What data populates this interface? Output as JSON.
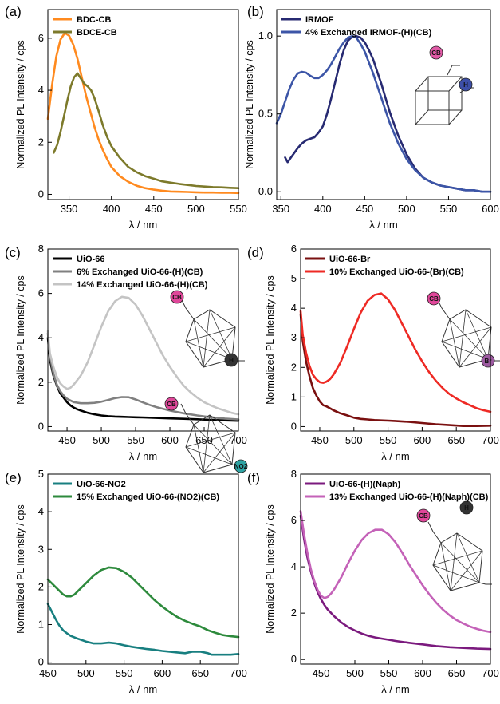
{
  "figure": {
    "background": "#ffffff"
  },
  "chart_data": [
    {
      "panel_label": "(a)",
      "type": "line",
      "xlabel": "λ / nm",
      "ylabel": "Normalized PL Intensity / cps",
      "xlim": [
        325,
        550
      ],
      "ylim": [
        -0.2,
        7.1
      ],
      "xticks": [
        350,
        400,
        450,
        500,
        550
      ],
      "yticks": [
        0,
        2,
        4,
        6
      ],
      "legend_position": "top-left",
      "series": [
        {
          "name": "BDC-CB",
          "color": "#ff8a1f",
          "width": 2.6,
          "x": [
            325,
            330,
            335,
            340,
            345,
            350,
            355,
            360,
            365,
            370,
            375,
            380,
            385,
            390,
            395,
            400,
            410,
            420,
            430,
            440,
            450,
            460,
            470,
            480,
            490,
            500,
            510,
            520,
            530,
            540,
            550
          ],
          "y": [
            2.9,
            4.2,
            5.3,
            5.95,
            6.2,
            6.1,
            5.75,
            5.2,
            4.5,
            3.8,
            3.2,
            2.6,
            2.1,
            1.7,
            1.35,
            1.05,
            0.7,
            0.48,
            0.33,
            0.24,
            0.18,
            0.14,
            0.11,
            0.1,
            0.09,
            0.08,
            0.07,
            0.07,
            0.06,
            0.06,
            0.05
          ]
        },
        {
          "name": "BDCE-CB",
          "color": "#7d7a2b",
          "width": 2.6,
          "x": [
            332,
            336,
            340,
            344,
            348,
            352,
            356,
            360,
            364,
            368,
            372,
            376,
            380,
            385,
            390,
            395,
            400,
            410,
            420,
            430,
            440,
            450,
            460,
            470,
            480,
            490,
            500,
            510,
            520,
            530,
            540,
            550
          ],
          "y": [
            1.6,
            1.9,
            2.4,
            3.0,
            3.6,
            4.15,
            4.5,
            4.65,
            4.45,
            4.25,
            4.15,
            4.0,
            3.7,
            3.2,
            2.65,
            2.2,
            1.85,
            1.4,
            1.05,
            0.85,
            0.7,
            0.6,
            0.5,
            0.45,
            0.4,
            0.36,
            0.32,
            0.3,
            0.28,
            0.27,
            0.25,
            0.24
          ]
        }
      ]
    },
    {
      "panel_label": "(b)",
      "type": "line",
      "xlabel": "λ / nm",
      "ylabel": "Normalized PL Intensity / cps",
      "xlim": [
        345,
        600
      ],
      "ylim": [
        -0.05,
        1.17
      ],
      "xticks": [
        350,
        400,
        450,
        500,
        550,
        600
      ],
      "yticks": [
        0.0,
        0.5,
        1.0
      ],
      "tick_format": "1dp",
      "legend_position": "top-left",
      "inset_labels": [
        "CB",
        "H"
      ],
      "series": [
        {
          "name": "IRMOF",
          "color": "#272a72",
          "width": 2.6,
          "x": [
            355,
            358,
            362,
            366,
            370,
            375,
            380,
            385,
            390,
            395,
            400,
            405,
            410,
            415,
            420,
            425,
            430,
            435,
            440,
            445,
            450,
            455,
            460,
            465,
            470,
            475,
            480,
            490,
            500,
            510,
            520,
            530,
            540,
            550,
            560,
            570,
            580,
            590,
            600
          ],
          "y": [
            0.22,
            0.19,
            0.22,
            0.25,
            0.28,
            0.31,
            0.33,
            0.34,
            0.35,
            0.38,
            0.42,
            0.5,
            0.6,
            0.71,
            0.82,
            0.91,
            0.97,
            0.995,
            1.0,
            0.99,
            0.96,
            0.91,
            0.85,
            0.77,
            0.69,
            0.6,
            0.51,
            0.36,
            0.24,
            0.15,
            0.09,
            0.06,
            0.04,
            0.03,
            0.02,
            0.01,
            0.01,
            0.0,
            0.0
          ]
        },
        {
          "name": "4% Exchanged IRMOF-(H)(CB)",
          "color": "#3c55a7",
          "width": 2.6,
          "x": [
            345,
            350,
            355,
            360,
            365,
            370,
            375,
            380,
            385,
            390,
            395,
            400,
            405,
            410,
            415,
            420,
            425,
            430,
            435,
            440,
            445,
            450,
            455,
            460,
            465,
            470,
            475,
            480,
            490,
            500,
            510,
            520,
            530,
            540,
            550,
            560,
            570,
            580,
            590,
            600
          ],
          "y": [
            0.44,
            0.5,
            0.58,
            0.66,
            0.72,
            0.76,
            0.77,
            0.765,
            0.745,
            0.73,
            0.73,
            0.75,
            0.78,
            0.82,
            0.87,
            0.92,
            0.96,
            0.99,
            1.0,
            0.99,
            0.95,
            0.9,
            0.83,
            0.76,
            0.68,
            0.6,
            0.52,
            0.44,
            0.31,
            0.21,
            0.14,
            0.09,
            0.06,
            0.04,
            0.03,
            0.02,
            0.01,
            0.01,
            0.0,
            0.0
          ]
        }
      ]
    },
    {
      "panel_label": "(c)",
      "type": "line",
      "xlabel": "λ / nm",
      "ylabel": "Normalized PL Intensity / cps",
      "xlim": [
        422,
        700
      ],
      "ylim": [
        -0.2,
        8.0
      ],
      "xticks": [
        450,
        500,
        550,
        600,
        650,
        700
      ],
      "yticks": [
        0,
        2,
        4,
        6,
        8
      ],
      "legend_position": "top-left",
      "inset_labels": [
        "CB",
        "H"
      ],
      "series": [
        {
          "name": "UiO-66",
          "color": "#000000",
          "width": 2.6,
          "x": [
            422,
            425,
            430,
            435,
            440,
            445,
            450,
            455,
            460,
            465,
            470,
            480,
            490,
            500,
            510,
            520,
            530,
            540,
            550,
            560,
            580,
            600,
            620,
            640,
            660,
            680,
            700
          ],
          "y": [
            4.0,
            3.0,
            2.3,
            1.85,
            1.5,
            1.3,
            1.1,
            0.95,
            0.85,
            0.78,
            0.72,
            0.62,
            0.55,
            0.5,
            0.47,
            0.45,
            0.44,
            0.43,
            0.42,
            0.41,
            0.39,
            0.37,
            0.35,
            0.33,
            0.3,
            0.28,
            0.26
          ]
        },
        {
          "name": "6% Exchanged UiO-66-(H)(CB)",
          "color": "#808080",
          "width": 2.6,
          "x": [
            422,
            425,
            430,
            435,
            440,
            445,
            450,
            460,
            470,
            480,
            490,
            500,
            510,
            520,
            530,
            540,
            550,
            560,
            570,
            580,
            600,
            620,
            640,
            660,
            680,
            700
          ],
          "y": [
            4.2,
            3.2,
            2.4,
            1.9,
            1.6,
            1.4,
            1.25,
            1.1,
            1.05,
            1.05,
            1.07,
            1.12,
            1.2,
            1.28,
            1.33,
            1.32,
            1.22,
            1.1,
            0.98,
            0.88,
            0.72,
            0.6,
            0.5,
            0.42,
            0.36,
            0.32
          ]
        },
        {
          "name": "14% Exchanged UiO-66-(H)(CB)",
          "color": "#c4c4c4",
          "width": 2.6,
          "x": [
            422,
            425,
            430,
            435,
            440,
            445,
            450,
            455,
            460,
            470,
            480,
            490,
            500,
            510,
            520,
            530,
            540,
            550,
            560,
            570,
            580,
            590,
            600,
            610,
            620,
            630,
            640,
            650,
            660,
            670,
            680,
            690,
            700
          ],
          "y": [
            4.3,
            3.3,
            2.7,
            2.25,
            1.95,
            1.8,
            1.7,
            1.75,
            1.9,
            2.3,
            2.9,
            3.7,
            4.5,
            5.2,
            5.65,
            5.85,
            5.8,
            5.5,
            5.0,
            4.4,
            3.8,
            3.2,
            2.7,
            2.25,
            1.85,
            1.55,
            1.3,
            1.1,
            0.95,
            0.82,
            0.72,
            0.62,
            0.55
          ]
        }
      ]
    },
    {
      "panel_label": "(d)",
      "type": "line",
      "xlabel": "λ / nm",
      "ylabel": "Normalized PL Intensity / cps",
      "xlim": [
        422,
        700
      ],
      "ylim": [
        -0.15,
        6.0
      ],
      "xticks": [
        450,
        500,
        550,
        600,
        650,
        700
      ],
      "yticks": [
        0,
        1,
        2,
        3,
        4,
        5,
        6
      ],
      "legend_position": "top-left",
      "inset_labels": [
        "CB",
        "Br"
      ],
      "series": [
        {
          "name": "UiO-66-Br",
          "color": "#7a1010",
          "width": 2.6,
          "x": [
            422,
            425,
            430,
            435,
            440,
            445,
            450,
            455,
            460,
            465,
            470,
            480,
            490,
            500,
            510,
            520,
            530,
            540,
            550,
            560,
            580,
            600,
            620,
            640,
            660,
            680,
            700
          ],
          "y": [
            3.8,
            2.9,
            2.2,
            1.7,
            1.3,
            1.05,
            0.85,
            0.72,
            0.68,
            0.62,
            0.55,
            0.45,
            0.38,
            0.3,
            0.26,
            0.24,
            0.22,
            0.21,
            0.2,
            0.19,
            0.16,
            0.12,
            0.08,
            0.05,
            0.02,
            0.02,
            0.03
          ]
        },
        {
          "name": "10% Exchanged UiO-66-(Br)(CB)",
          "color": "#ee2a24",
          "width": 2.6,
          "x": [
            422,
            425,
            430,
            435,
            440,
            445,
            450,
            455,
            460,
            465,
            470,
            480,
            490,
            500,
            510,
            520,
            530,
            540,
            550,
            560,
            570,
            580,
            590,
            600,
            610,
            620,
            630,
            640,
            650,
            660,
            670,
            680,
            690,
            700
          ],
          "y": [
            3.9,
            3.1,
            2.5,
            2.05,
            1.75,
            1.6,
            1.5,
            1.48,
            1.52,
            1.6,
            1.75,
            2.15,
            2.7,
            3.3,
            3.85,
            4.25,
            4.45,
            4.5,
            4.3,
            3.95,
            3.5,
            3.05,
            2.6,
            2.2,
            1.85,
            1.55,
            1.3,
            1.1,
            0.95,
            0.82,
            0.72,
            0.62,
            0.55,
            0.5
          ]
        }
      ]
    },
    {
      "panel_label": "(e)",
      "type": "line",
      "xlabel": "λ / nm",
      "ylabel": "Normalized PL Intensity / cps",
      "xlim": [
        450,
        700
      ],
      "ylim": [
        -0.05,
        5.0
      ],
      "xticks": [
        450,
        500,
        550,
        600,
        650,
        700
      ],
      "yticks": [
        0,
        1,
        2,
        3,
        4,
        5
      ],
      "legend_position": "top-left",
      "inset_labels": [
        "CB",
        "NO2"
      ],
      "series": [
        {
          "name": "UiO-66-NO2",
          "color": "#187f80",
          "width": 2.6,
          "x": [
            450,
            455,
            460,
            465,
            470,
            475,
            480,
            490,
            500,
            510,
            520,
            530,
            540,
            550,
            560,
            570,
            580,
            590,
            600,
            610,
            620,
            630,
            640,
            650,
            660,
            665,
            670,
            680,
            690,
            700
          ],
          "y": [
            1.55,
            1.35,
            1.15,
            0.98,
            0.85,
            0.77,
            0.7,
            0.62,
            0.55,
            0.5,
            0.5,
            0.52,
            0.5,
            0.45,
            0.41,
            0.38,
            0.35,
            0.33,
            0.3,
            0.28,
            0.26,
            0.24,
            0.28,
            0.28,
            0.24,
            0.2,
            0.2,
            0.2,
            0.2,
            0.22
          ]
        },
        {
          "name": "15% Exchanged UiO-66-(NO2)(CB)",
          "color": "#2d8a3c",
          "width": 2.6,
          "x": [
            450,
            455,
            460,
            465,
            470,
            475,
            480,
            485,
            490,
            500,
            510,
            520,
            530,
            540,
            550,
            560,
            570,
            580,
            590,
            600,
            610,
            620,
            630,
            640,
            650,
            660,
            670,
            680,
            690,
            700
          ],
          "y": [
            2.2,
            2.1,
            2.0,
            1.9,
            1.8,
            1.75,
            1.75,
            1.8,
            1.9,
            2.1,
            2.3,
            2.45,
            2.52,
            2.5,
            2.4,
            2.25,
            2.05,
            1.85,
            1.65,
            1.48,
            1.33,
            1.2,
            1.1,
            1.02,
            0.95,
            0.85,
            0.78,
            0.72,
            0.69,
            0.67
          ]
        }
      ]
    },
    {
      "panel_label": "(f)",
      "type": "line",
      "xlabel": "λ / nm",
      "ylabel": "Normalized PL Intensity / cps",
      "xlim": [
        420,
        700
      ],
      "ylim": [
        -0.2,
        8.0
      ],
      "xticks": [
        450,
        500,
        550,
        600,
        650,
        700
      ],
      "yticks": [
        0,
        2,
        4,
        6,
        8
      ],
      "legend_position": "top-left",
      "inset_labels": [
        "CB",
        "H"
      ],
      "series": [
        {
          "name": "UiO-66-(H)(Naph)",
          "color": "#7b1a7e",
          "width": 2.6,
          "x": [
            420,
            425,
            430,
            435,
            440,
            445,
            450,
            455,
            460,
            465,
            470,
            480,
            490,
            500,
            510,
            520,
            530,
            540,
            550,
            560,
            580,
            600,
            620,
            640,
            660,
            680,
            700
          ],
          "y": [
            6.2,
            5.2,
            4.4,
            3.8,
            3.3,
            2.9,
            2.6,
            2.35,
            2.15,
            2.0,
            1.85,
            1.6,
            1.4,
            1.25,
            1.12,
            1.02,
            0.95,
            0.9,
            0.85,
            0.8,
            0.72,
            0.65,
            0.58,
            0.53,
            0.5,
            0.47,
            0.45
          ]
        },
        {
          "name": "13% Exchanged UiO-66-(H)(Naph)(CB)",
          "color": "#c462b8",
          "width": 2.6,
          "x": [
            420,
            425,
            430,
            435,
            440,
            445,
            450,
            455,
            460,
            465,
            470,
            480,
            490,
            500,
            510,
            520,
            530,
            540,
            550,
            560,
            570,
            580,
            590,
            600,
            610,
            620,
            630,
            640,
            650,
            660,
            670,
            680,
            690,
            700
          ],
          "y": [
            6.4,
            5.4,
            4.6,
            3.9,
            3.4,
            3.0,
            2.75,
            2.65,
            2.7,
            2.85,
            3.05,
            3.55,
            4.15,
            4.7,
            5.15,
            5.45,
            5.6,
            5.6,
            5.4,
            5.05,
            4.6,
            4.1,
            3.65,
            3.2,
            2.8,
            2.45,
            2.15,
            1.9,
            1.7,
            1.55,
            1.42,
            1.32,
            1.24,
            1.18
          ]
        }
      ]
    }
  ]
}
